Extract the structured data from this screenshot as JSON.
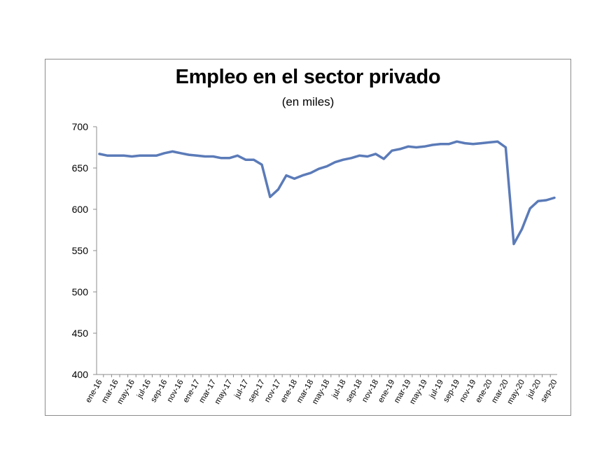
{
  "chart_data": {
    "type": "line",
    "title": "Empleo en el sector privado",
    "subtitle": "(en miles)",
    "xlabel": "",
    "ylabel": "",
    "ylim": [
      400,
      700
    ],
    "yticks": [
      400,
      450,
      500,
      550,
      600,
      650,
      700
    ],
    "grid": false,
    "legend": "none",
    "line_color": "#5b7bb8",
    "x_tick_labels": [
      "ene-16",
      "mar-16",
      "may-16",
      "jul-16",
      "sep-16",
      "nov-16",
      "ene-17",
      "mar-17",
      "may-17",
      "jul-17",
      "sep-17",
      "nov-17",
      "ene-18",
      "mar-18",
      "may-18",
      "jul-18",
      "sep-18",
      "nov-18",
      "ene-19",
      "mar-19",
      "may-19",
      "jul-19",
      "sep-19",
      "nov-19",
      "ene-20",
      "mar-20",
      "may-20",
      "jul-20",
      "sep-20"
    ],
    "x": [
      "ene-16",
      "feb-16",
      "mar-16",
      "abr-16",
      "may-16",
      "jun-16",
      "jul-16",
      "ago-16",
      "sep-16",
      "oct-16",
      "nov-16",
      "dic-16",
      "ene-17",
      "feb-17",
      "mar-17",
      "abr-17",
      "may-17",
      "jun-17",
      "jul-17",
      "ago-17",
      "sep-17",
      "oct-17",
      "nov-17",
      "dic-17",
      "ene-18",
      "feb-18",
      "mar-18",
      "abr-18",
      "may-18",
      "jun-18",
      "jul-18",
      "ago-18",
      "sep-18",
      "oct-18",
      "nov-18",
      "dic-18",
      "ene-19",
      "feb-19",
      "mar-19",
      "abr-19",
      "may-19",
      "jun-19",
      "jul-19",
      "ago-19",
      "sep-19",
      "oct-19",
      "nov-19",
      "dic-19",
      "ene-20",
      "feb-20",
      "mar-20",
      "abr-20",
      "may-20",
      "jun-20",
      "jul-20",
      "ago-20",
      "sep-20"
    ],
    "series": [
      {
        "values": [
          667,
          665,
          665,
          665,
          664,
          665,
          665,
          665,
          668,
          670,
          668,
          666,
          665,
          664,
          664,
          662,
          662,
          665,
          660,
          660,
          654,
          615,
          624,
          641,
          637,
          641,
          644,
          649,
          652,
          657,
          660,
          662,
          665,
          664,
          667,
          661,
          671,
          673,
          676,
          675,
          676,
          678,
          679,
          679,
          682,
          680,
          679,
          680,
          681,
          682,
          675,
          558,
          576,
          601,
          610,
          611,
          614
        ]
      }
    ]
  }
}
